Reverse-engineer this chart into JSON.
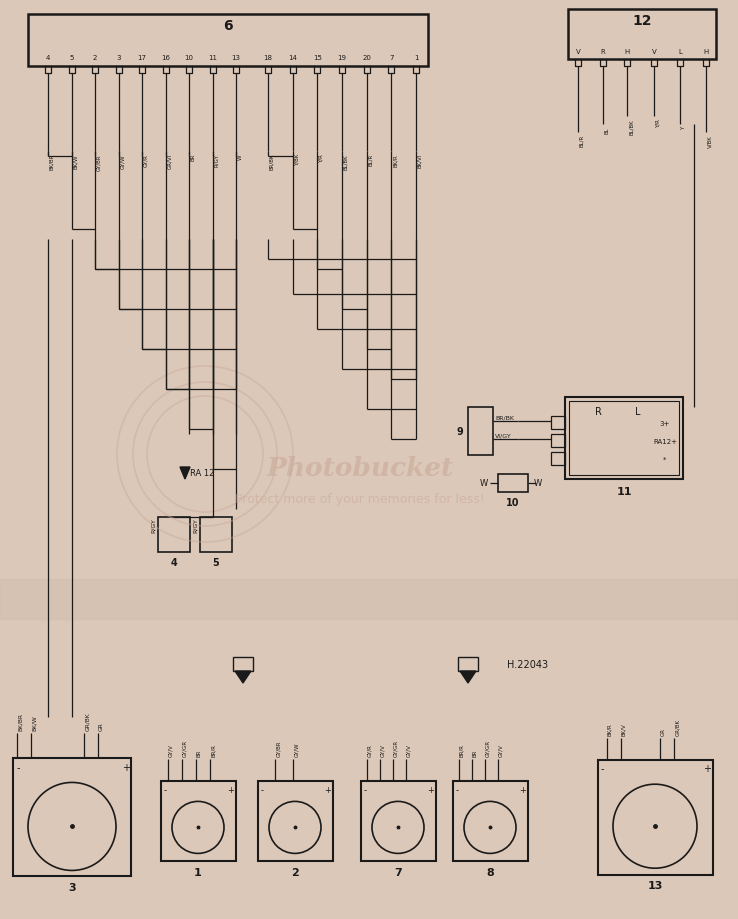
{
  "bg_color": "#dcc8b8",
  "line_color": "#1a1a1a",
  "connector6_label": "6",
  "connector6_pins": [
    "4",
    "5",
    "2",
    "3",
    "17",
    "16",
    "10",
    "11",
    "13",
    "18",
    "14",
    "15",
    "19",
    "20",
    "7",
    "1"
  ],
  "connector6_wires": [
    "BK/BR",
    "BK/W",
    "GY/BR",
    "GY/W",
    "GY/R",
    "GR/VI",
    "BR",
    "R/GY",
    "W",
    "BR/BK",
    "Y/BK",
    "Y/R",
    "BL/BK",
    "BL/R",
    "BK/R",
    "BK/VI"
  ],
  "connector12_label": "12",
  "connector12_pins": [
    "V",
    "R",
    "H",
    "V",
    "L",
    "H"
  ],
  "connector12_wires": [
    "BL/R",
    "BL",
    "BL/BK",
    "Y/R",
    "Y",
    "V/BK"
  ],
  "box9_label": "9",
  "box9_wires": [
    "BR/BK",
    "VI/GY"
  ],
  "box10_label": "10",
  "box11_label": "11",
  "box4_label": "4",
  "box4_wire": "R/GY",
  "box5_label": "5",
  "box5_wire": "R/GY",
  "ra12_label": "RA 12",
  "h22043_label": "H.22043",
  "speaker3_label": "3",
  "speaker3_wires_left": [
    "BK/BR",
    "BK/W"
  ],
  "speaker3_wires_right": [
    "GR/BK",
    "GR"
  ],
  "speaker1_label": "1",
  "speaker1_wires": [
    "GY/V",
    "GY/GR",
    "BR",
    "BR/R"
  ],
  "speaker2_label": "2",
  "speaker2_wires": [
    "GY/BR",
    "GY/W"
  ],
  "speaker7_label": "7",
  "speaker7_wires": [
    "GY/R",
    "GY/V",
    "GY/GR",
    "GY/V"
  ],
  "speaker8_label": "8",
  "speaker8_wires": [
    "BR/R",
    "BR",
    "GY/GR",
    "GY/V"
  ],
  "speaker13_label": "13",
  "speaker13_wires_left": [
    "BK/R",
    "BK/V"
  ],
  "speaker13_wires_right": [
    "GR",
    "GR/BK"
  ],
  "wm_text1": "Photobucket",
  "wm_text2": "Protect more of your memories for less!",
  "wm_color": "#c8a898"
}
